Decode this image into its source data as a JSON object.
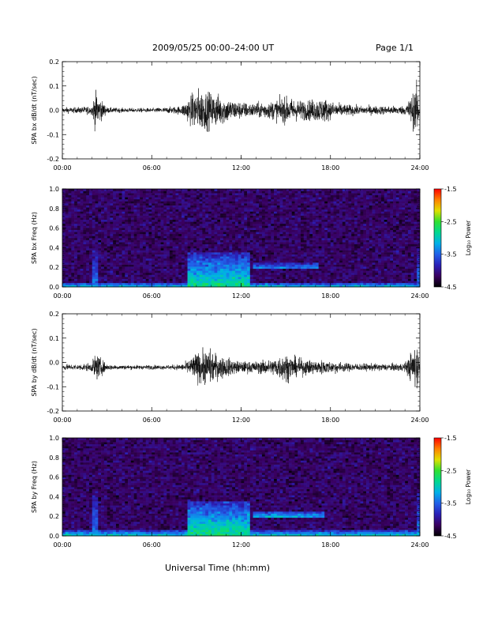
{
  "header": {
    "title": "2009/05/25  00:00–24:00 UT",
    "page": "Page 1/1"
  },
  "colors": {
    "trace": "#000000",
    "colormap": [
      "#000000",
      "#3a0060",
      "#2a20b8",
      "#2060e8",
      "#00b0e8",
      "#00d890",
      "#30e030",
      "#e0e000",
      "#ff8000",
      "#ff0000"
    ]
  },
  "chart_data": [
    {
      "type": "line",
      "ylabel": "SPA bx dB/dt (nT/sec)",
      "xlabel": "",
      "xticks": [
        "00:00",
        "06:00",
        "12:00",
        "18:00",
        "24:00"
      ],
      "ylim": [
        -0.2,
        0.2
      ],
      "yticks": [
        "-0.2",
        "-0.1",
        "0.0",
        "0.1",
        "0.2"
      ],
      "baseline": 0.0,
      "x_hours": [
        0,
        1,
        2,
        2.2,
        3,
        4,
        5,
        6,
        7,
        8,
        8.5,
        9,
        9.5,
        10,
        10.5,
        11,
        11.5,
        12,
        12.5,
        13,
        13.5,
        14,
        14.5,
        15,
        15.5,
        16,
        16.5,
        17,
        17.5,
        18,
        18.5,
        19,
        20,
        21,
        22,
        23,
        23.8,
        24
      ],
      "amplitude": [
        0.02,
        0.02,
        0.03,
        0.13,
        0.02,
        0.015,
        0.015,
        0.015,
        0.02,
        0.03,
        0.09,
        0.15,
        0.14,
        0.12,
        0.11,
        0.09,
        0.07,
        0.06,
        0.05,
        0.05,
        0.06,
        0.06,
        0.08,
        0.09,
        0.08,
        0.07,
        0.07,
        0.08,
        0.09,
        0.06,
        0.05,
        0.04,
        0.03,
        0.03,
        0.03,
        0.03,
        0.17,
        0.05
      ]
    },
    {
      "type": "heatmap",
      "ylabel": "SPA bx Freq (Hz)",
      "xlabel": "",
      "xticks": [
        "00:00",
        "06:00",
        "12:00",
        "18:00",
        "24:00"
      ],
      "ylim": [
        0.0,
        1.0
      ],
      "yticks": [
        "0.0",
        "0.2",
        "0.4",
        "0.6",
        "0.8",
        "1.0"
      ],
      "colorbar": {
        "label": "Log₁₀ Power",
        "ticks": [
          "-1.5",
          "-2.5",
          "-3.5",
          "-4.5"
        ],
        "range": [
          -4.5,
          -1.5
        ]
      },
      "features": [
        {
          "name": "low-frequency band",
          "hours": [
            0,
            24
          ],
          "freq_hz": [
            0.0,
            0.05
          ],
          "log_power": -3.0
        },
        {
          "name": "broadband enhancement",
          "hours": [
            8.5,
            12.5
          ],
          "freq_hz": [
            0.0,
            0.35
          ],
          "log_power": -2.8
        },
        {
          "name": "narrowband emission",
          "hours": [
            12.8,
            17.2
          ],
          "freq_hz": [
            0.18,
            0.26
          ],
          "log_power": -3.2
        },
        {
          "name": "impulse",
          "hours": [
            2.0,
            2.3
          ],
          "freq_hz": [
            0.0,
            0.4
          ],
          "log_power": -3.4
        },
        {
          "name": "impulse",
          "hours": [
            23.8,
            24.0
          ],
          "freq_hz": [
            0.0,
            0.4
          ],
          "log_power": -3.4
        }
      ]
    },
    {
      "type": "line",
      "ylabel": "SPA by dB/dt (nT/sec)",
      "xlabel": "",
      "xticks": [
        "00:00",
        "06:00",
        "12:00",
        "18:00",
        "24:00"
      ],
      "ylim": [
        -0.2,
        0.2
      ],
      "yticks": [
        "-0.2",
        "-0.1",
        "0.0",
        "0.1",
        "0.2"
      ],
      "baseline": -0.02,
      "x_hours": [
        0,
        1,
        2,
        2.2,
        3,
        4,
        5,
        6,
        7,
        8,
        8.5,
        9,
        9.5,
        10,
        10.5,
        11,
        11.5,
        12,
        12.5,
        13,
        13.5,
        14,
        14.5,
        15,
        15.5,
        16,
        16.5,
        17,
        17.5,
        18,
        18.5,
        19,
        20,
        21,
        22,
        23,
        23.8,
        24
      ],
      "amplitude": [
        0.02,
        0.02,
        0.03,
        0.1,
        0.02,
        0.015,
        0.015,
        0.015,
        0.015,
        0.02,
        0.05,
        0.1,
        0.12,
        0.12,
        0.08,
        0.07,
        0.05,
        0.04,
        0.04,
        0.04,
        0.05,
        0.05,
        0.08,
        0.1,
        0.07,
        0.06,
        0.05,
        0.05,
        0.05,
        0.04,
        0.04,
        0.03,
        0.025,
        0.025,
        0.025,
        0.03,
        0.17,
        0.05
      ]
    },
    {
      "type": "heatmap",
      "ylabel": "SPA by Freq (Hz)",
      "xlabel": "Universal Time (hh:mm)",
      "xticks": [
        "00:00",
        "06:00",
        "12:00",
        "18:00",
        "24:00"
      ],
      "ylim": [
        0.0,
        1.0
      ],
      "yticks": [
        "0.0",
        "0.2",
        "0.4",
        "0.6",
        "0.8",
        "1.0"
      ],
      "colorbar": {
        "label": "Log₁₀ Power",
        "ticks": [
          "-1.5",
          "-2.5",
          "-3.5",
          "-4.5"
        ],
        "range": [
          -4.5,
          -1.5
        ]
      },
      "features": [
        {
          "name": "low-frequency band",
          "hours": [
            0,
            24
          ],
          "freq_hz": [
            0.0,
            0.06
          ],
          "log_power": -2.9
        },
        {
          "name": "broadband enhancement",
          "hours": [
            8.5,
            12.5
          ],
          "freq_hz": [
            0.0,
            0.35
          ],
          "log_power": -2.7
        },
        {
          "name": "narrowband emission",
          "hours": [
            12.8,
            17.5
          ],
          "freq_hz": [
            0.18,
            0.26
          ],
          "log_power": -3.0
        },
        {
          "name": "impulse",
          "hours": [
            2.0,
            2.3
          ],
          "freq_hz": [
            0.0,
            0.45
          ],
          "log_power": -3.3
        },
        {
          "name": "impulse",
          "hours": [
            23.8,
            24.0
          ],
          "freq_hz": [
            0.0,
            0.45
          ],
          "log_power": -3.3
        }
      ]
    }
  ]
}
